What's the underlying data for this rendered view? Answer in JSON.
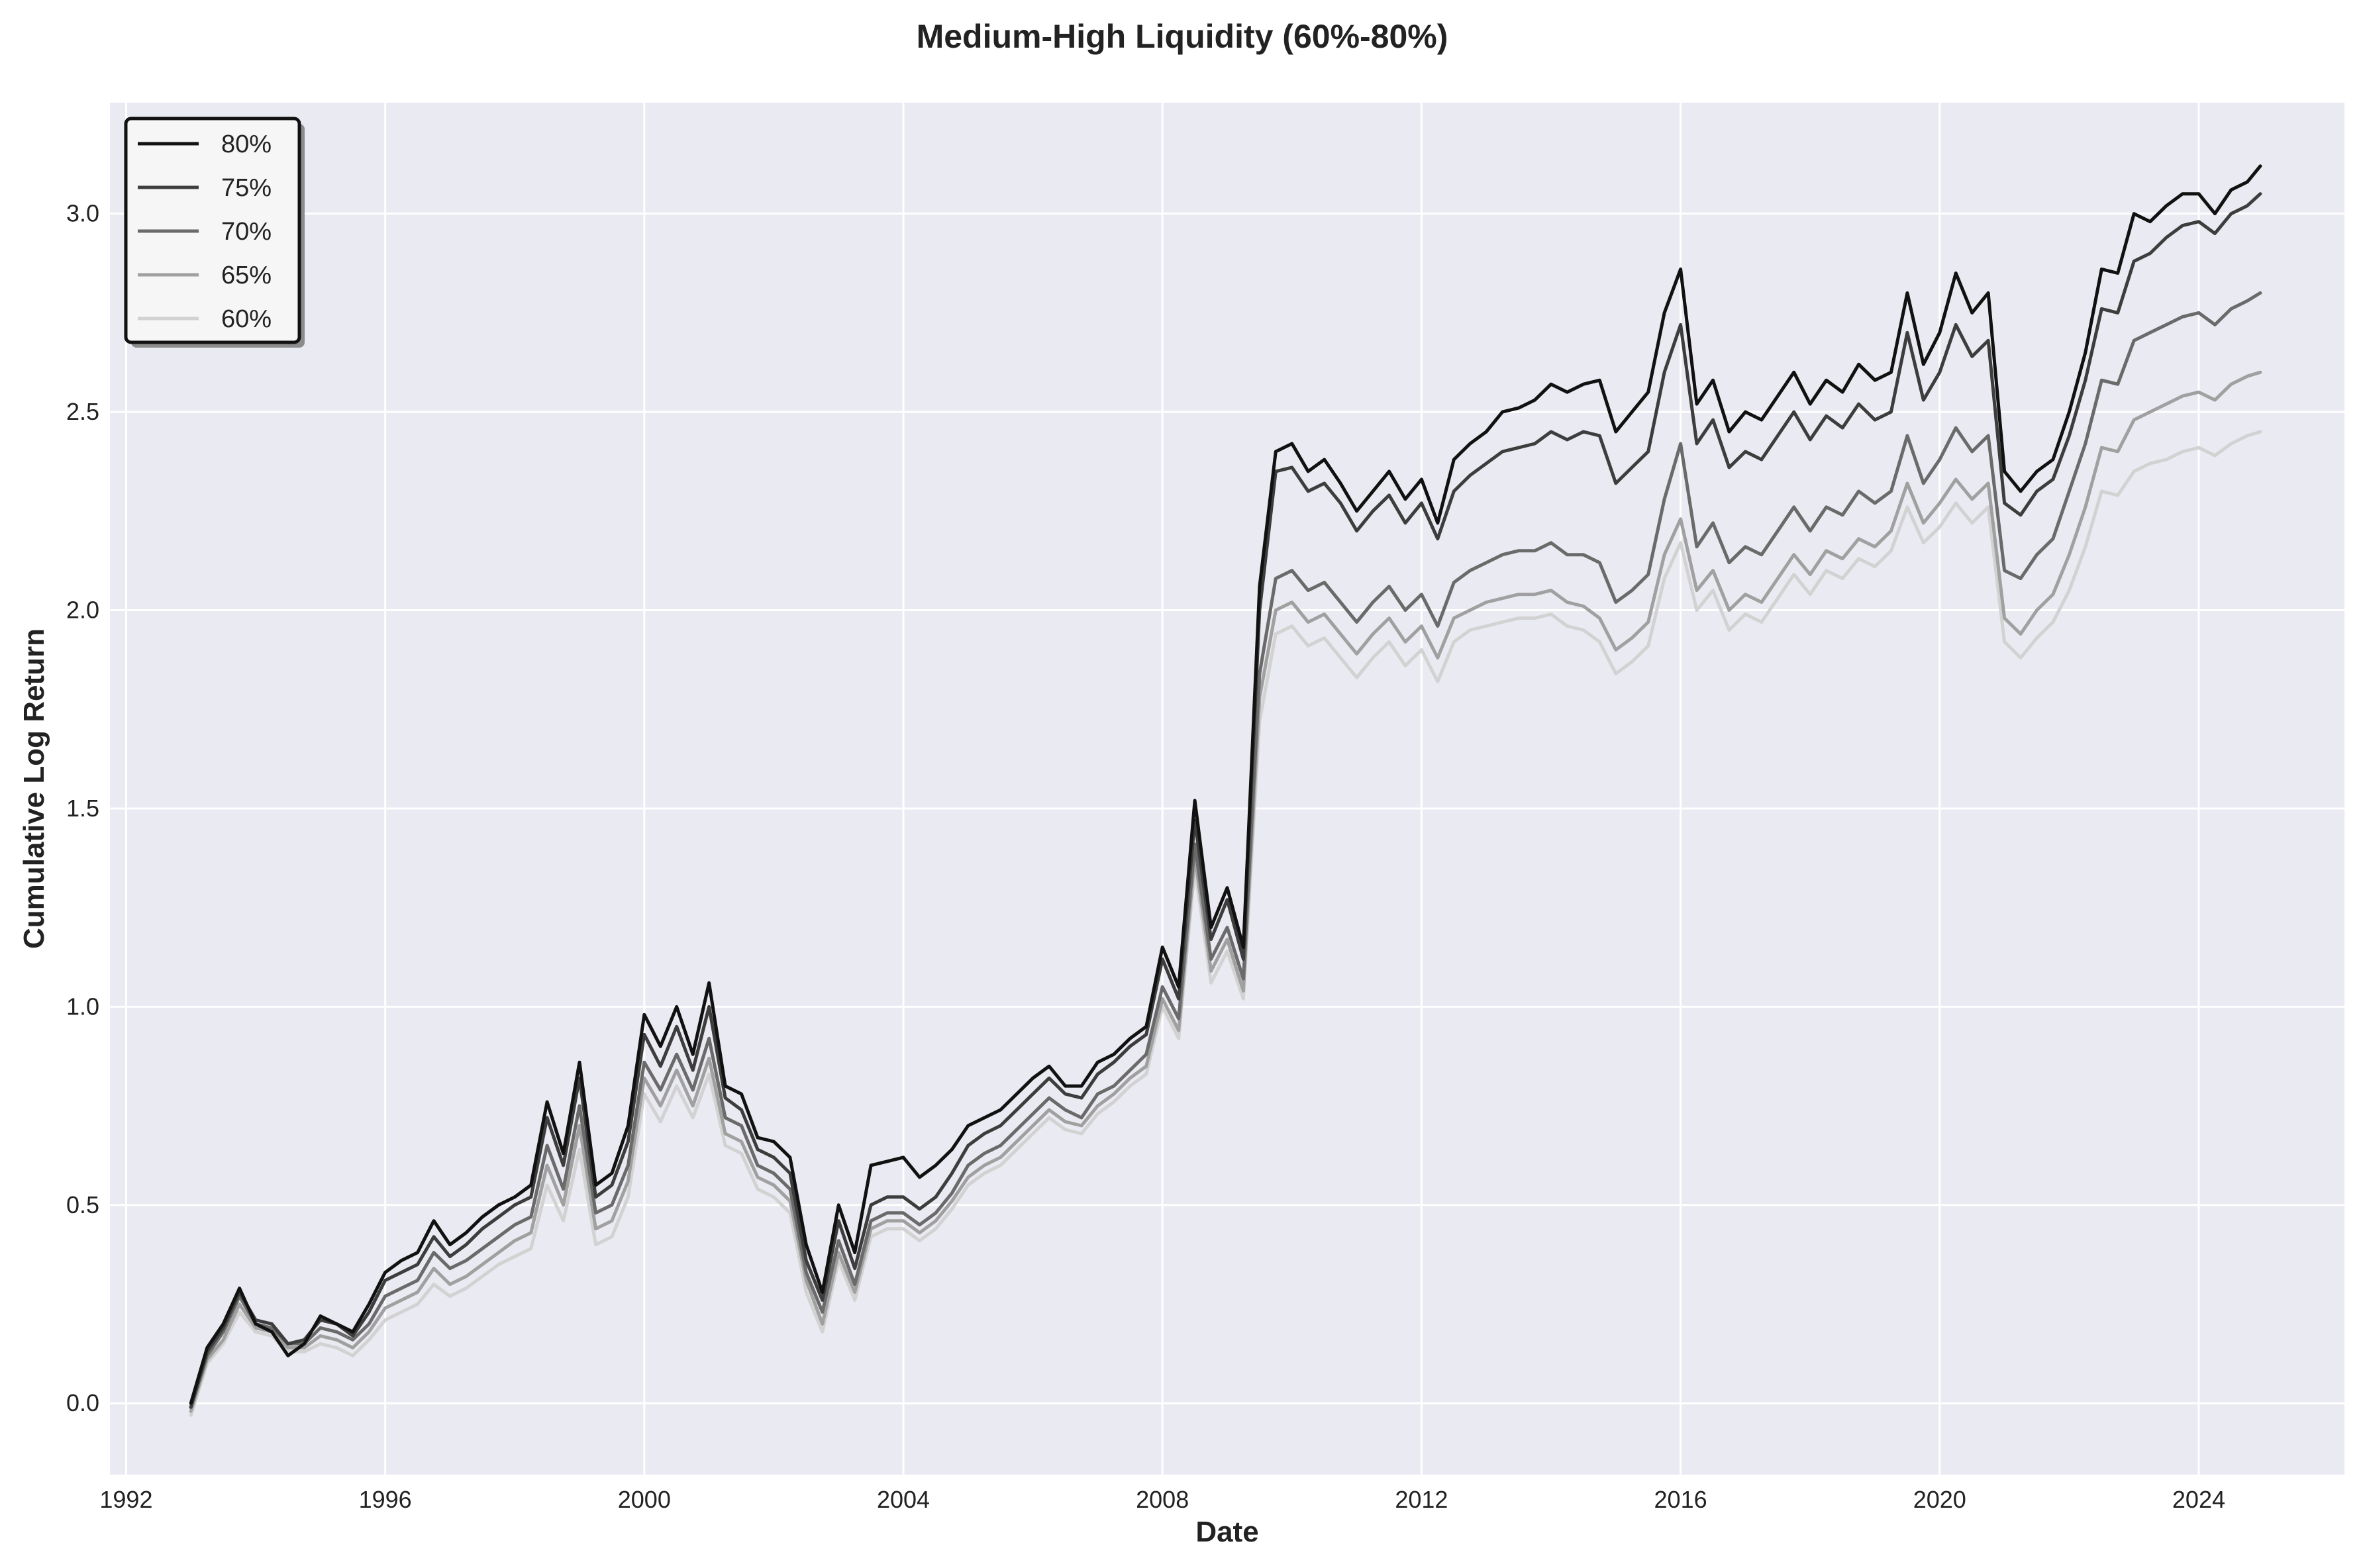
{
  "chart_data": {
    "type": "line",
    "title": "Medium-High Liquidity (60%-80%)",
    "xlabel": "Date",
    "ylabel": "Cumulative Log Return",
    "x_ticks": [
      "1992",
      "1996",
      "2000",
      "2004",
      "2008",
      "2012",
      "2016",
      "2020",
      "2024"
    ],
    "y_ticks": [
      "0.0",
      "0.5",
      "1.0",
      "1.5",
      "2.0",
      "2.5",
      "3.0"
    ],
    "xlim": [
      1991.75,
      2026.25
    ],
    "ylim": [
      -0.18,
      3.28
    ],
    "grid": true,
    "legend_position": "top-left",
    "colors": {
      "background": "#eaeaf2",
      "grid": "#ffffff",
      "s80": "#111111",
      "s75": "#3d3d3d",
      "s70": "#6a6a6a",
      "s65": "#a0a0a0",
      "s60": "#d2d2d2"
    },
    "x": [
      1993.0,
      1993.25,
      1993.5,
      1993.75,
      1994.0,
      1994.25,
      1994.5,
      1994.75,
      1995.0,
      1995.25,
      1995.5,
      1995.75,
      1996.0,
      1996.25,
      1996.5,
      1996.75,
      1997.0,
      1997.25,
      1997.5,
      1997.75,
      1998.0,
      1998.25,
      1998.5,
      1998.75,
      1999.0,
      1999.25,
      1999.5,
      1999.75,
      2000.0,
      2000.25,
      2000.5,
      2000.75,
      2001.0,
      2001.25,
      2001.5,
      2001.75,
      2002.0,
      2002.25,
      2002.5,
      2002.75,
      2003.0,
      2003.25,
      2003.5,
      2003.75,
      2004.0,
      2004.25,
      2004.5,
      2004.75,
      2005.0,
      2005.25,
      2005.5,
      2005.75,
      2006.0,
      2006.25,
      2006.5,
      2006.75,
      2007.0,
      2007.25,
      2007.5,
      2007.75,
      2008.0,
      2008.25,
      2008.5,
      2008.75,
      2009.0,
      2009.25,
      2009.5,
      2009.75,
      2010.0,
      2010.25,
      2010.5,
      2010.75,
      2011.0,
      2011.25,
      2011.5,
      2011.75,
      2012.0,
      2012.25,
      2012.5,
      2012.75,
      2013.0,
      2013.25,
      2013.5,
      2013.75,
      2014.0,
      2014.25,
      2014.5,
      2014.75,
      2015.0,
      2015.25,
      2015.5,
      2015.75,
      2016.0,
      2016.25,
      2016.5,
      2016.75,
      2017.0,
      2017.25,
      2017.5,
      2017.75,
      2018.0,
      2018.25,
      2018.5,
      2018.75,
      2019.0,
      2019.25,
      2019.5,
      2019.75,
      2020.0,
      2020.25,
      2020.5,
      2020.75,
      2021.0,
      2021.25,
      2021.5,
      2021.75,
      2022.0,
      2022.25,
      2022.5,
      2022.75,
      2023.0,
      2023.25,
      2023.5,
      2023.75,
      2024.0,
      2024.25,
      2024.5,
      2024.75,
      2024.95
    ],
    "series": [
      {
        "name": "80%",
        "color": "#111111",
        "values": [
          0.0,
          0.14,
          0.2,
          0.29,
          0.2,
          0.18,
          0.12,
          0.15,
          0.22,
          0.2,
          0.18,
          0.25,
          0.33,
          0.36,
          0.38,
          0.46,
          0.4,
          0.43,
          0.47,
          0.5,
          0.52,
          0.55,
          0.76,
          0.63,
          0.86,
          0.55,
          0.58,
          0.7,
          0.98,
          0.9,
          1.0,
          0.88,
          1.06,
          0.8,
          0.78,
          0.67,
          0.66,
          0.62,
          0.4,
          0.28,
          0.5,
          0.38,
          0.6,
          0.61,
          0.62,
          0.57,
          0.6,
          0.64,
          0.7,
          0.72,
          0.74,
          0.78,
          0.82,
          0.85,
          0.8,
          0.8,
          0.86,
          0.88,
          0.92,
          0.95,
          1.15,
          1.05,
          1.52,
          1.2,
          1.3,
          1.15,
          2.06,
          2.4,
          2.42,
          2.35,
          2.38,
          2.32,
          2.25,
          2.3,
          2.35,
          2.28,
          2.33,
          2.22,
          2.38,
          2.42,
          2.45,
          2.5,
          2.51,
          2.53,
          2.57,
          2.55,
          2.57,
          2.58,
          2.45,
          2.5,
          2.55,
          2.75,
          2.86,
          2.52,
          2.58,
          2.45,
          2.5,
          2.48,
          2.54,
          2.6,
          2.52,
          2.58,
          2.55,
          2.62,
          2.58,
          2.6,
          2.8,
          2.62,
          2.7,
          2.85,
          2.75,
          2.8,
          2.35,
          2.3,
          2.35,
          2.38,
          2.5,
          2.65,
          2.86,
          2.85,
          3.0,
          2.98,
          3.02,
          3.05,
          3.05,
          3.0,
          3.06,
          3.08,
          3.12
        ]
      },
      {
        "name": "75%",
        "color": "#3d3d3d",
        "values": [
          -0.01,
          0.13,
          0.19,
          0.28,
          0.21,
          0.2,
          0.15,
          0.16,
          0.21,
          0.2,
          0.17,
          0.23,
          0.31,
          0.33,
          0.35,
          0.42,
          0.37,
          0.4,
          0.44,
          0.47,
          0.5,
          0.52,
          0.72,
          0.6,
          0.82,
          0.52,
          0.55,
          0.66,
          0.93,
          0.85,
          0.95,
          0.84,
          1.0,
          0.77,
          0.74,
          0.64,
          0.62,
          0.58,
          0.36,
          0.26,
          0.46,
          0.34,
          0.5,
          0.52,
          0.52,
          0.49,
          0.52,
          0.58,
          0.65,
          0.68,
          0.7,
          0.74,
          0.78,
          0.82,
          0.78,
          0.77,
          0.83,
          0.86,
          0.9,
          0.93,
          1.12,
          1.02,
          1.47,
          1.17,
          1.27,
          1.12,
          2.0,
          2.35,
          2.36,
          2.3,
          2.32,
          2.27,
          2.2,
          2.25,
          2.29,
          2.22,
          2.27,
          2.18,
          2.3,
          2.34,
          2.37,
          2.4,
          2.41,
          2.42,
          2.45,
          2.43,
          2.45,
          2.44,
          2.32,
          2.36,
          2.4,
          2.6,
          2.72,
          2.42,
          2.48,
          2.36,
          2.4,
          2.38,
          2.44,
          2.5,
          2.43,
          2.49,
          2.46,
          2.52,
          2.48,
          2.5,
          2.7,
          2.53,
          2.6,
          2.72,
          2.64,
          2.68,
          2.27,
          2.24,
          2.3,
          2.33,
          2.44,
          2.58,
          2.76,
          2.75,
          2.88,
          2.9,
          2.94,
          2.97,
          2.98,
          2.95,
          3.0,
          3.02,
          3.05
        ]
      },
      {
        "name": "70%",
        "color": "#6a6a6a",
        "values": [
          -0.01,
          0.12,
          0.18,
          0.27,
          0.2,
          0.19,
          0.15,
          0.15,
          0.19,
          0.18,
          0.16,
          0.2,
          0.27,
          0.29,
          0.31,
          0.38,
          0.34,
          0.36,
          0.39,
          0.42,
          0.45,
          0.47,
          0.65,
          0.54,
          0.75,
          0.48,
          0.5,
          0.6,
          0.86,
          0.79,
          0.88,
          0.79,
          0.92,
          0.72,
          0.7,
          0.6,
          0.58,
          0.54,
          0.33,
          0.23,
          0.41,
          0.3,
          0.46,
          0.48,
          0.48,
          0.45,
          0.48,
          0.53,
          0.6,
          0.63,
          0.65,
          0.69,
          0.73,
          0.77,
          0.74,
          0.72,
          0.78,
          0.8,
          0.84,
          0.88,
          1.05,
          0.97,
          1.41,
          1.12,
          1.2,
          1.07,
          1.84,
          2.08,
          2.1,
          2.05,
          2.07,
          2.02,
          1.97,
          2.02,
          2.06,
          2.0,
          2.04,
          1.96,
          2.07,
          2.1,
          2.12,
          2.14,
          2.15,
          2.15,
          2.17,
          2.14,
          2.14,
          2.12,
          2.02,
          2.05,
          2.09,
          2.28,
          2.42,
          2.16,
          2.22,
          2.12,
          2.16,
          2.14,
          2.2,
          2.26,
          2.2,
          2.26,
          2.24,
          2.3,
          2.27,
          2.3,
          2.44,
          2.32,
          2.38,
          2.46,
          2.4,
          2.44,
          2.1,
          2.08,
          2.14,
          2.18,
          2.3,
          2.42,
          2.58,
          2.57,
          2.68,
          2.7,
          2.72,
          2.74,
          2.75,
          2.72,
          2.76,
          2.78,
          2.8
        ]
      },
      {
        "name": "65%",
        "color": "#a0a0a0",
        "values": [
          -0.02,
          0.11,
          0.16,
          0.25,
          0.19,
          0.18,
          0.14,
          0.14,
          0.17,
          0.16,
          0.14,
          0.18,
          0.24,
          0.26,
          0.28,
          0.34,
          0.3,
          0.32,
          0.35,
          0.38,
          0.41,
          0.43,
          0.6,
          0.5,
          0.7,
          0.44,
          0.46,
          0.56,
          0.82,
          0.75,
          0.84,
          0.75,
          0.87,
          0.68,
          0.66,
          0.57,
          0.55,
          0.51,
          0.31,
          0.2,
          0.38,
          0.28,
          0.44,
          0.46,
          0.46,
          0.43,
          0.46,
          0.51,
          0.57,
          0.6,
          0.62,
          0.66,
          0.7,
          0.74,
          0.71,
          0.7,
          0.75,
          0.78,
          0.82,
          0.85,
          1.02,
          0.94,
          1.38,
          1.09,
          1.17,
          1.04,
          1.78,
          2.0,
          2.02,
          1.97,
          1.99,
          1.94,
          1.89,
          1.94,
          1.98,
          1.92,
          1.96,
          1.88,
          1.98,
          2.0,
          2.02,
          2.03,
          2.04,
          2.04,
          2.05,
          2.02,
          2.01,
          1.98,
          1.9,
          1.93,
          1.97,
          2.14,
          2.23,
          2.05,
          2.1,
          2.0,
          2.04,
          2.02,
          2.08,
          2.14,
          2.09,
          2.15,
          2.13,
          2.18,
          2.16,
          2.2,
          2.32,
          2.22,
          2.27,
          2.33,
          2.28,
          2.32,
          1.98,
          1.94,
          2.0,
          2.04,
          2.14,
          2.26,
          2.41,
          2.4,
          2.48,
          2.5,
          2.52,
          2.54,
          2.55,
          2.53,
          2.57,
          2.59,
          2.6
        ]
      },
      {
        "name": "60%",
        "color": "#d2d2d2",
        "values": [
          -0.03,
          0.1,
          0.15,
          0.23,
          0.18,
          0.17,
          0.13,
          0.13,
          0.15,
          0.14,
          0.12,
          0.16,
          0.21,
          0.23,
          0.25,
          0.3,
          0.27,
          0.29,
          0.32,
          0.35,
          0.37,
          0.39,
          0.55,
          0.46,
          0.64,
          0.4,
          0.42,
          0.52,
          0.78,
          0.71,
          0.8,
          0.72,
          0.83,
          0.65,
          0.63,
          0.54,
          0.52,
          0.48,
          0.28,
          0.18,
          0.36,
          0.26,
          0.42,
          0.44,
          0.44,
          0.41,
          0.44,
          0.49,
          0.55,
          0.58,
          0.6,
          0.64,
          0.68,
          0.72,
          0.69,
          0.68,
          0.73,
          0.76,
          0.8,
          0.83,
          1.0,
          0.92,
          1.35,
          1.06,
          1.14,
          1.02,
          1.72,
          1.94,
          1.96,
          1.91,
          1.93,
          1.88,
          1.83,
          1.88,
          1.92,
          1.86,
          1.9,
          1.82,
          1.92,
          1.95,
          1.96,
          1.97,
          1.98,
          1.98,
          1.99,
          1.96,
          1.95,
          1.92,
          1.84,
          1.87,
          1.91,
          2.08,
          2.17,
          2.0,
          2.05,
          1.95,
          1.99,
          1.97,
          2.03,
          2.09,
          2.04,
          2.1,
          2.08,
          2.13,
          2.11,
          2.15,
          2.26,
          2.17,
          2.21,
          2.27,
          2.22,
          2.26,
          1.92,
          1.88,
          1.93,
          1.97,
          2.05,
          2.16,
          2.3,
          2.29,
          2.35,
          2.37,
          2.38,
          2.4,
          2.41,
          2.39,
          2.42,
          2.44,
          2.45
        ]
      }
    ]
  }
}
